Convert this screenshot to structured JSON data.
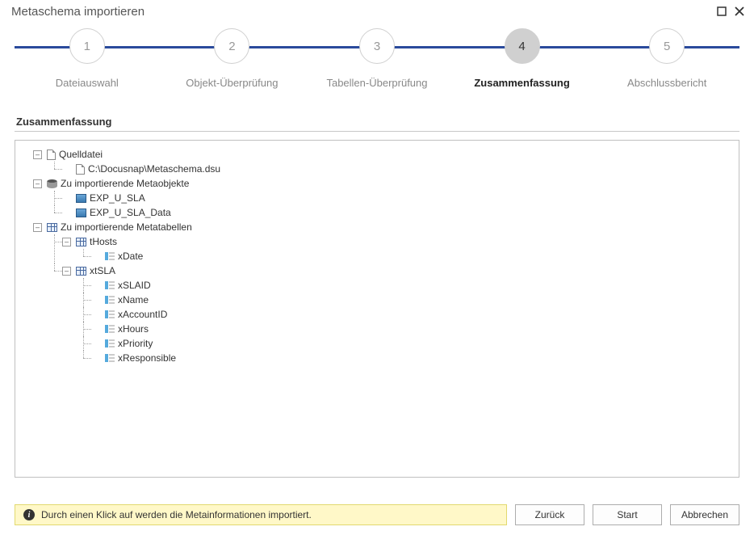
{
  "window": {
    "title": "Metaschema importieren"
  },
  "stepper": {
    "track_color": "#2a4a9c",
    "active_index": 3,
    "steps": [
      {
        "num": "1",
        "label": "Dateiauswahl"
      },
      {
        "num": "2",
        "label": "Objekt-Überprüfung"
      },
      {
        "num": "3",
        "label": "Tabellen-Überprüfung"
      },
      {
        "num": "4",
        "label": "Zusammenfassung"
      },
      {
        "num": "5",
        "label": "Abschlussbericht"
      }
    ]
  },
  "section": {
    "title": "Zusammenfassung"
  },
  "tree": {
    "source_label": "Quelldatei",
    "source_path": "C:\\Docusnap\\Metaschema.dsu",
    "metaobjects_label": "Zu importierende Metaobjekte",
    "metaobjects": [
      "EXP_U_SLA",
      "EXP_U_SLA_Data"
    ],
    "metatables_label": "Zu importierende Metatabellen",
    "tables": [
      {
        "name": "tHosts",
        "columns": [
          "xDate"
        ]
      },
      {
        "name": "xtSLA",
        "columns": [
          "xSLAID",
          "xName",
          "xAccountID",
          "xHours",
          "xPriority",
          "xResponsible"
        ]
      }
    ]
  },
  "footer": {
    "info_text": "Durch einen Klick auf  werden die Metainformationen importiert.",
    "back": "Zurück",
    "start": "Start",
    "cancel": "Abbrechen"
  },
  "colors": {
    "info_bg": "#fff8c8",
    "info_border": "#e2d96f",
    "panel_border": "#c0c0c0"
  }
}
